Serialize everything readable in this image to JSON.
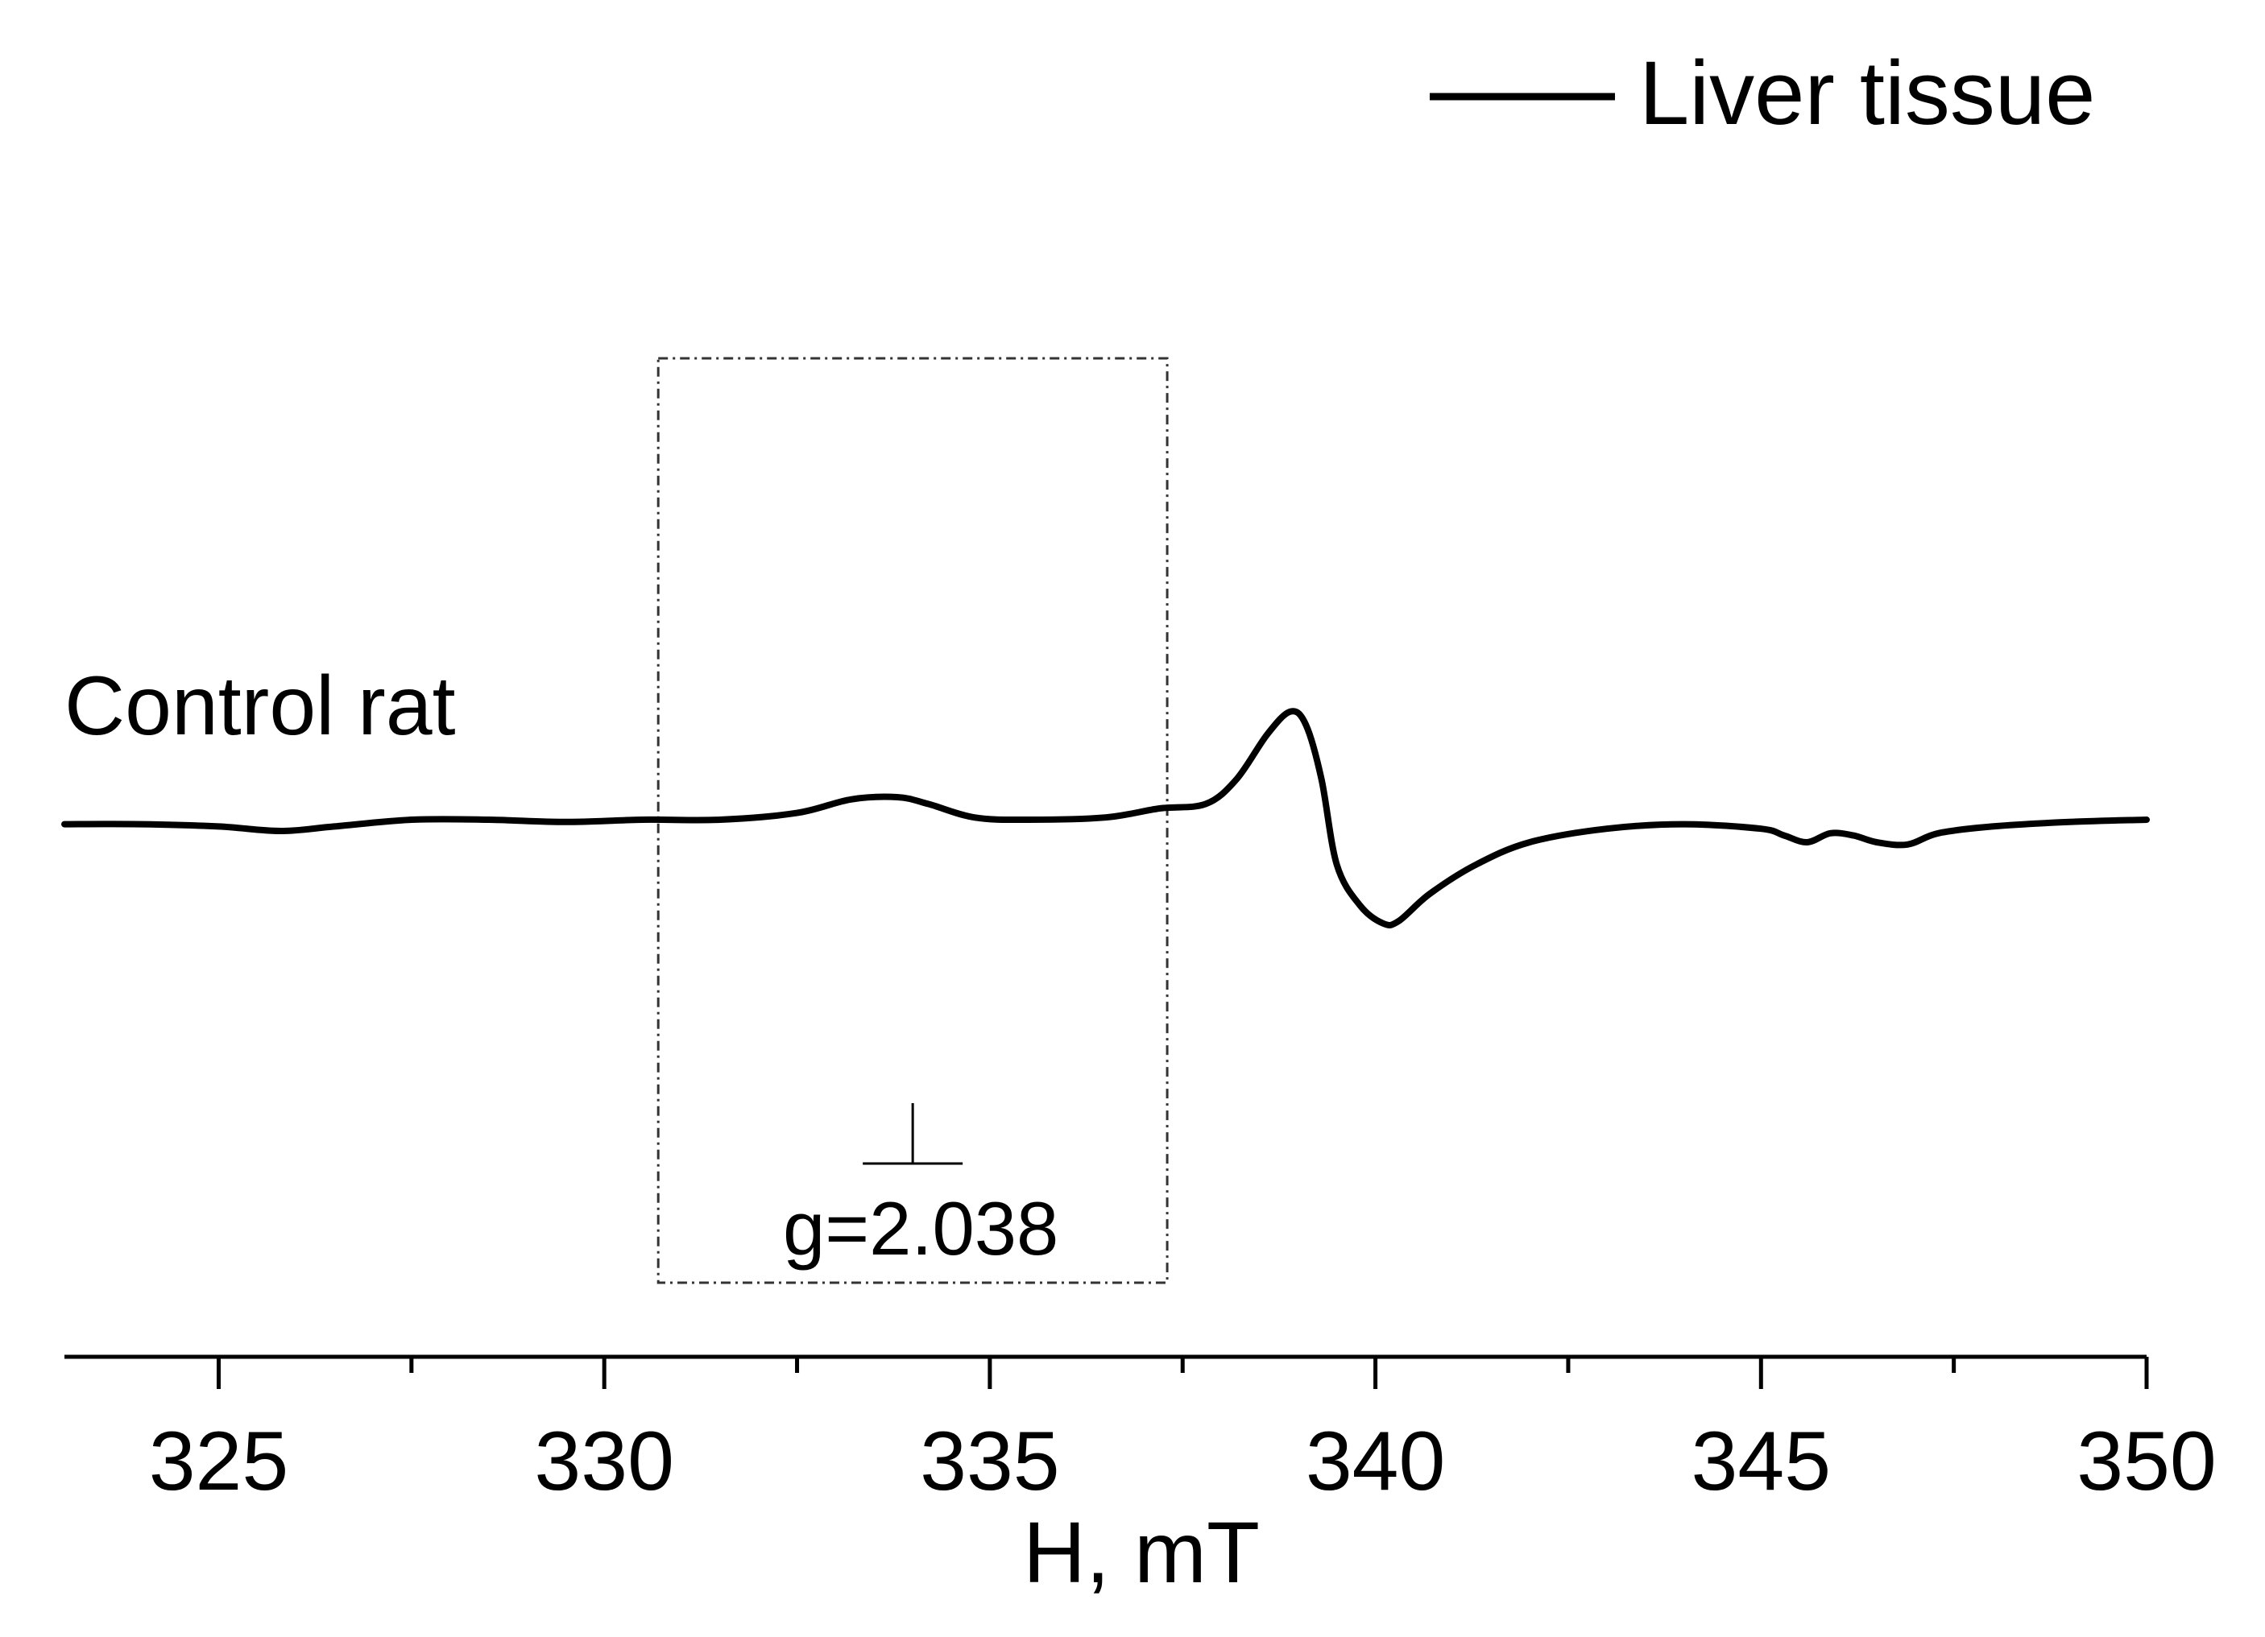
{
  "chart_data": {
    "type": "line",
    "title": "",
    "xlabel": "H, mT",
    "ylabel": "",
    "xlim": [
      323,
      350
    ],
    "ylim": [
      -0.6,
      0.8
    ],
    "x_ticks": [
      325,
      330,
      335,
      340,
      345,
      350
    ],
    "minor_tick_step": 2.5,
    "y_axis_shown": false,
    "grid": false,
    "legend_position": "top-right",
    "series": [
      {
        "name": "Liver tissue",
        "color": "#000000",
        "x": [
          323,
          324,
          325,
          325.8,
          326.5,
          327.5,
          328.5,
          329.5,
          330.5,
          331.5,
          332.5,
          333.2,
          333.8,
          334.2,
          334.8,
          335.5,
          336.5,
          337.2,
          337.8,
          338.2,
          338.6,
          338.9,
          339.1,
          339.3,
          339.5,
          339.8,
          340.1,
          340.3,
          340.7,
          341.3,
          342,
          343,
          344,
          345,
          345.3,
          345.6,
          345.9,
          346.2,
          346.5,
          346.9,
          347.3,
          348,
          349,
          350
        ],
        "y": [
          -0.02,
          -0.02,
          -0.03,
          -0.05,
          -0.03,
          0.0,
          0.0,
          -0.01,
          0.0,
          0.0,
          0.03,
          0.09,
          0.1,
          0.07,
          0.01,
          0.0,
          0.01,
          0.05,
          0.07,
          0.18,
          0.38,
          0.48,
          0.42,
          0.18,
          -0.2,
          -0.38,
          -0.46,
          -0.45,
          -0.33,
          -0.2,
          -0.1,
          -0.04,
          -0.02,
          -0.04,
          -0.07,
          -0.1,
          -0.06,
          -0.07,
          -0.1,
          -0.11,
          -0.06,
          -0.03,
          -0.01,
          0.0
        ]
      }
    ],
    "annotations": [
      {
        "text": "Control rat",
        "position": "left, above trace"
      },
      {
        "text": "g=2.038",
        "marker_x": 334,
        "box_x_range": [
          330.7,
          337.3
        ],
        "box_style": "dash-dot"
      }
    ]
  }
}
